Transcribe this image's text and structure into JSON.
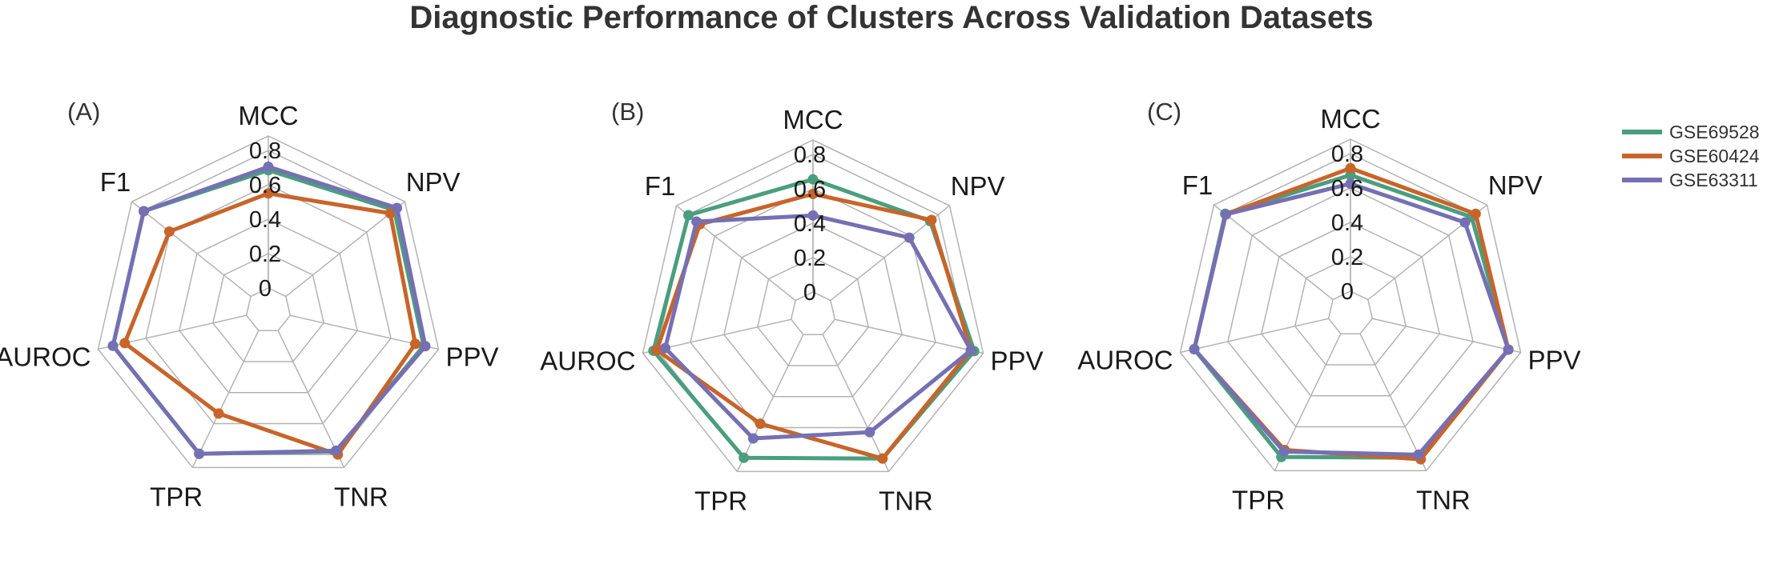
{
  "chart_data": {
    "type": "radar",
    "title": "Diagnostic Performance of Clusters Across Validation Datasets",
    "axes": [
      "MCC",
      "NPV",
      "PPV",
      "TNR",
      "TPR",
      "AUROC",
      "F1"
    ],
    "radial_ticks": [
      "0",
      "0.2",
      "0.4",
      "0.6",
      "0.8"
    ],
    "radial_range": [
      0,
      0.8
    ],
    "grid": true,
    "legend_position": "top-right",
    "legend": [
      "GSE69528",
      "GSE60424",
      "GSE63311"
    ],
    "colors": {
      "GSE69528": "#4a9e7e",
      "GSE60424": "#c8642a",
      "GSE63311": "#7570b3"
    },
    "panels": [
      {
        "label": "(A)",
        "series": [
          {
            "name": "GSE69528",
            "values": {
              "MCC": 0.685,
              "NPV": 0.805,
              "PPV": 0.795,
              "TNR": 0.78,
              "TPR": 0.795,
              "AUROC": 0.795,
              "F1": 0.795
            }
          },
          {
            "name": "GSE60424",
            "values": {
              "MCC": 0.55,
              "NPV": 0.775,
              "PPV": 0.745,
              "TNR": 0.8,
              "TPR": 0.535,
              "AUROC": 0.725,
              "F1": 0.605
            }
          },
          {
            "name": "GSE63311",
            "values": {
              "MCC": 0.705,
              "NPV": 0.825,
              "PPV": 0.805,
              "TNR": 0.775,
              "TPR": 0.795,
              "AUROC": 0.795,
              "F1": 0.795
            }
          }
        ]
      },
      {
        "label": "(B)",
        "series": [
          {
            "name": "GSE69528",
            "values": {
              "MCC": 0.655,
              "NPV": 0.74,
              "PPV": 0.83,
              "TNR": 0.8,
              "TPR": 0.795,
              "AUROC": 0.82,
              "F1": 0.795
            }
          },
          {
            "name": "GSE60424",
            "values": {
              "MCC": 0.57,
              "NPV": 0.75,
              "PPV": 0.81,
              "TNR": 0.8,
              "TPR": 0.575,
              "AUROC": 0.8,
              "F1": 0.71
            }
          },
          {
            "name": "GSE63311",
            "values": {
              "MCC": 0.445,
              "NPV": 0.585,
              "PPV": 0.81,
              "TNR": 0.63,
              "TPR": 0.67,
              "AUROC": 0.75,
              "F1": 0.735
            }
          }
        ]
      },
      {
        "label": "(C)",
        "series": [
          {
            "name": "GSE69528",
            "values": {
              "MCC": 0.675,
              "NPV": 0.77,
              "PPV": 0.81,
              "TNR": 0.8,
              "TPR": 0.795,
              "AUROC": 0.8,
              "F1": 0.8
            }
          },
          {
            "name": "GSE60424",
            "values": {
              "MCC": 0.715,
              "NPV": 0.8,
              "PPV": 0.81,
              "TNR": 0.81,
              "TPR": 0.75,
              "AUROC": 0.8,
              "F1": 0.795
            }
          },
          {
            "name": "GSE63311",
            "values": {
              "MCC": 0.625,
              "NPV": 0.72,
              "PPV": 0.81,
              "TNR": 0.78,
              "TPR": 0.76,
              "AUROC": 0.8,
              "F1": 0.795
            }
          }
        ]
      }
    ]
  }
}
